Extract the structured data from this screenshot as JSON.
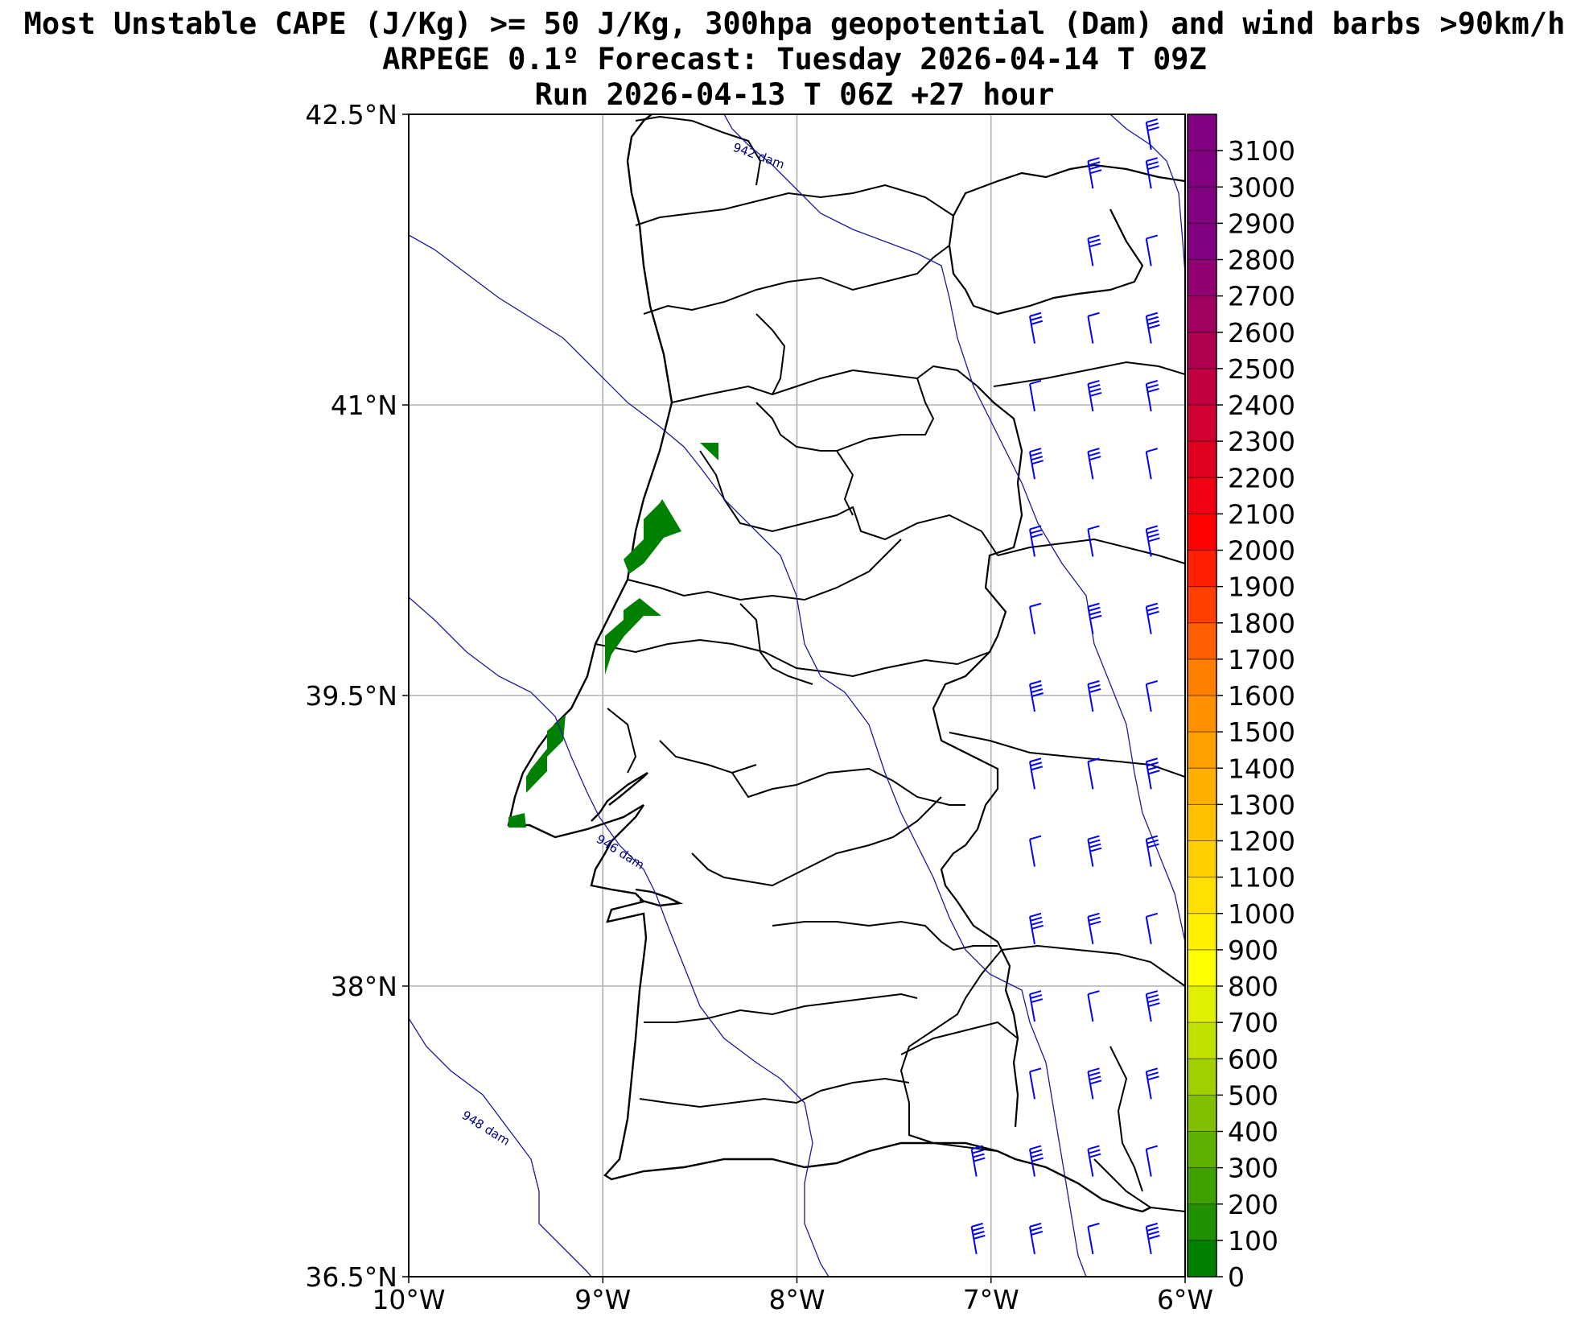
{
  "title": {
    "line1": "Most Unstable CAPE (J/Kg) >= 50 J/Kg, 300hpa geopotential (Dam) and wind barbs >90km/h",
    "line2": "ARPEGE 0.1º Forecast: Tuesday 2026-04-14 T 09Z",
    "line3": "Run 2026-04-13 T 06Z +27 hour"
  },
  "map": {
    "lon_range": [
      -10,
      -6
    ],
    "lat_range": [
      36.5,
      42.5
    ],
    "lon_ticks": [
      {
        "value": -10,
        "label": "10°W"
      },
      {
        "value": -9,
        "label": "9°W"
      },
      {
        "value": -8,
        "label": "8°W"
      },
      {
        "value": -7,
        "label": "7°W"
      },
      {
        "value": -6,
        "label": "6°W"
      }
    ],
    "lat_ticks": [
      {
        "value": 42.5,
        "label": "42.5°N"
      },
      {
        "value": 41,
        "label": "41°N"
      },
      {
        "value": 39.5,
        "label": "39.5°N"
      },
      {
        "value": 38,
        "label": "38°N"
      },
      {
        "value": 36.5,
        "label": "36.5°N"
      }
    ],
    "grid": true,
    "contours": [
      {
        "label": "942 dam",
        "color": "#000080"
      },
      {
        "label": "946 dam",
        "color": "#000080"
      },
      {
        "label": "948 dam",
        "color": "#000080"
      }
    ],
    "cape_fill_color": "#008000",
    "wind_barb_color": "#0000ff"
  },
  "colorbar": {
    "min": 0,
    "max": 3200,
    "tick_labels": [
      "0",
      "100",
      "200",
      "300",
      "400",
      "500",
      "600",
      "700",
      "800",
      "900",
      "1000",
      "1100",
      "1200",
      "1300",
      "1400",
      "1500",
      "1600",
      "1700",
      "1800",
      "1900",
      "2000",
      "2100",
      "2200",
      "2300",
      "2400",
      "2500",
      "2600",
      "2700",
      "2800",
      "2900",
      "3000",
      "3100"
    ],
    "colors": [
      "#008000",
      "#209000",
      "#40a000",
      "#60b000",
      "#80c000",
      "#a0d000",
      "#c0e000",
      "#e0f000",
      "#ffff00",
      "#fff000",
      "#ffe000",
      "#ffd000",
      "#ffc000",
      "#ffb000",
      "#ffa000",
      "#ff9000",
      "#ff8000",
      "#ff6000",
      "#ff4000",
      "#ff2000",
      "#ff0000",
      "#f00010",
      "#e00020",
      "#d00030",
      "#c00040",
      "#b00050",
      "#a00060",
      "#900070",
      "#800080",
      "#800080",
      "#800080",
      "#800080"
    ]
  }
}
